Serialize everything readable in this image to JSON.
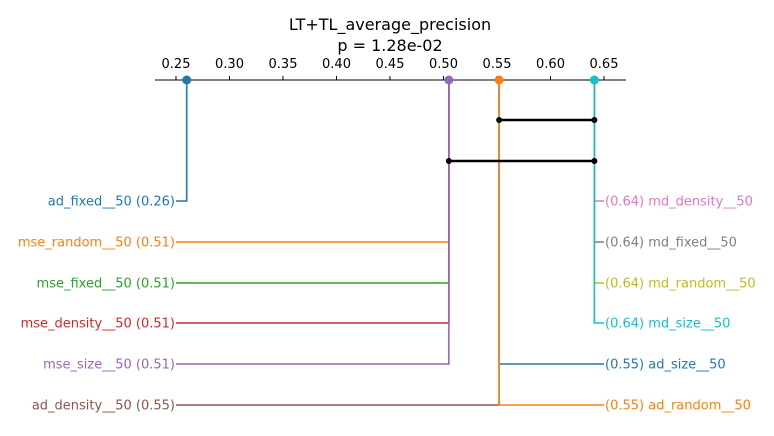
{
  "chart_data": {
    "type": "critical-difference",
    "title": "LT+TL_average_precision",
    "subtitle": "p = 1.28e-02",
    "xlim": [
      0.23,
      0.67
    ],
    "xticks": [
      0.25,
      0.3,
      0.35,
      0.4,
      0.45,
      0.5,
      0.55,
      0.6,
      0.65
    ],
    "xtick_labels": [
      "0.25",
      "0.30",
      "0.35",
      "0.40",
      "0.45",
      "0.50",
      "0.55",
      "0.60",
      "0.65"
    ],
    "left_entries": [
      {
        "name": "ad_fixed__50",
        "value": 0.26,
        "plot_value": 0.26,
        "value_label": "(0.26)",
        "color": "#1f77b4"
      },
      {
        "name": "mse_random__50",
        "value": 0.51,
        "plot_value": 0.505,
        "value_label": "(0.51)",
        "color": "#ff7f0e"
      },
      {
        "name": "mse_fixed__50",
        "value": 0.51,
        "plot_value": 0.505,
        "value_label": "(0.51)",
        "color": "#2ca02c"
      },
      {
        "name": "mse_density__50",
        "value": 0.51,
        "plot_value": 0.505,
        "value_label": "(0.51)",
        "color": "#d62728"
      },
      {
        "name": "mse_size__50",
        "value": 0.51,
        "plot_value": 0.505,
        "value_label": "(0.51)",
        "color": "#9467bd"
      },
      {
        "name": "ad_density__50",
        "value": 0.55,
        "plot_value": 0.552,
        "value_label": "(0.55)",
        "color": "#8c564b"
      }
    ],
    "right_entries": [
      {
        "name": "md_density__50",
        "value": 0.64,
        "plot_value": 0.641,
        "value_label": "(0.64)",
        "color": "#e377c2"
      },
      {
        "name": "md_fixed__50",
        "value": 0.64,
        "plot_value": 0.641,
        "value_label": "(0.64)",
        "color": "#7f7f7f"
      },
      {
        "name": "md_random__50",
        "value": 0.64,
        "plot_value": 0.641,
        "value_label": "(0.64)",
        "color": "#bcbd22"
      },
      {
        "name": "md_size__50",
        "value": 0.64,
        "plot_value": 0.641,
        "value_label": "(0.64)",
        "color": "#17becf"
      },
      {
        "name": "ad_size__50",
        "value": 0.55,
        "plot_value": 0.552,
        "value_label": "(0.55)",
        "color": "#1f77b4"
      },
      {
        "name": "ad_random__50",
        "value": 0.55,
        "plot_value": 0.552,
        "value_label": "(0.55)",
        "color": "#ff7f0e"
      }
    ],
    "axis_markers": [
      {
        "value": 0.26,
        "color": "#1f77b4"
      },
      {
        "value": 0.505,
        "color": "#9467bd"
      },
      {
        "value": 0.552,
        "color": "#ff7f0e"
      },
      {
        "value": 0.641,
        "color": "#17becf"
      }
    ],
    "cliques": [
      {
        "from": 0.552,
        "to": 0.641
      },
      {
        "from": 0.505,
        "to": 0.641
      }
    ],
    "clique_color": "#000000"
  }
}
